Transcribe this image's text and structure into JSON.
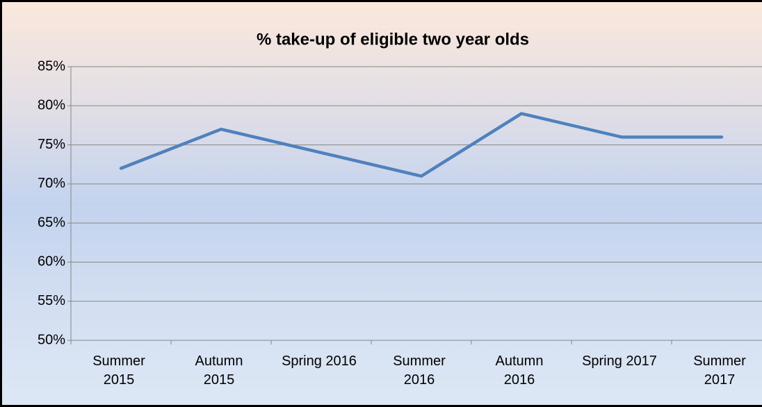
{
  "chart_data": {
    "type": "line",
    "title": "% take-up of eligible two year olds",
    "categories": [
      "Summer 2015",
      "Autumn 2015",
      "Spring 2016",
      "Summer 2016",
      "Autumn 2016",
      "Spring 2017",
      "Summer 2017"
    ],
    "series": [
      {
        "name": "% take-up",
        "color": "#4f81bd",
        "values": [
          72,
          77,
          74,
          71,
          79,
          76,
          76
        ]
      }
    ],
    "ylim": [
      50,
      85
    ],
    "yticks": [
      {
        "value": 50,
        "label": "50%"
      },
      {
        "value": 55,
        "label": "55%"
      },
      {
        "value": 60,
        "label": "60%"
      },
      {
        "value": 65,
        "label": "65%"
      },
      {
        "value": 70,
        "label": "70%"
      },
      {
        "value": 75,
        "label": "75%"
      },
      {
        "value": 80,
        "label": "80%"
      },
      {
        "value": 85,
        "label": "85%"
      }
    ],
    "grid": true
  }
}
